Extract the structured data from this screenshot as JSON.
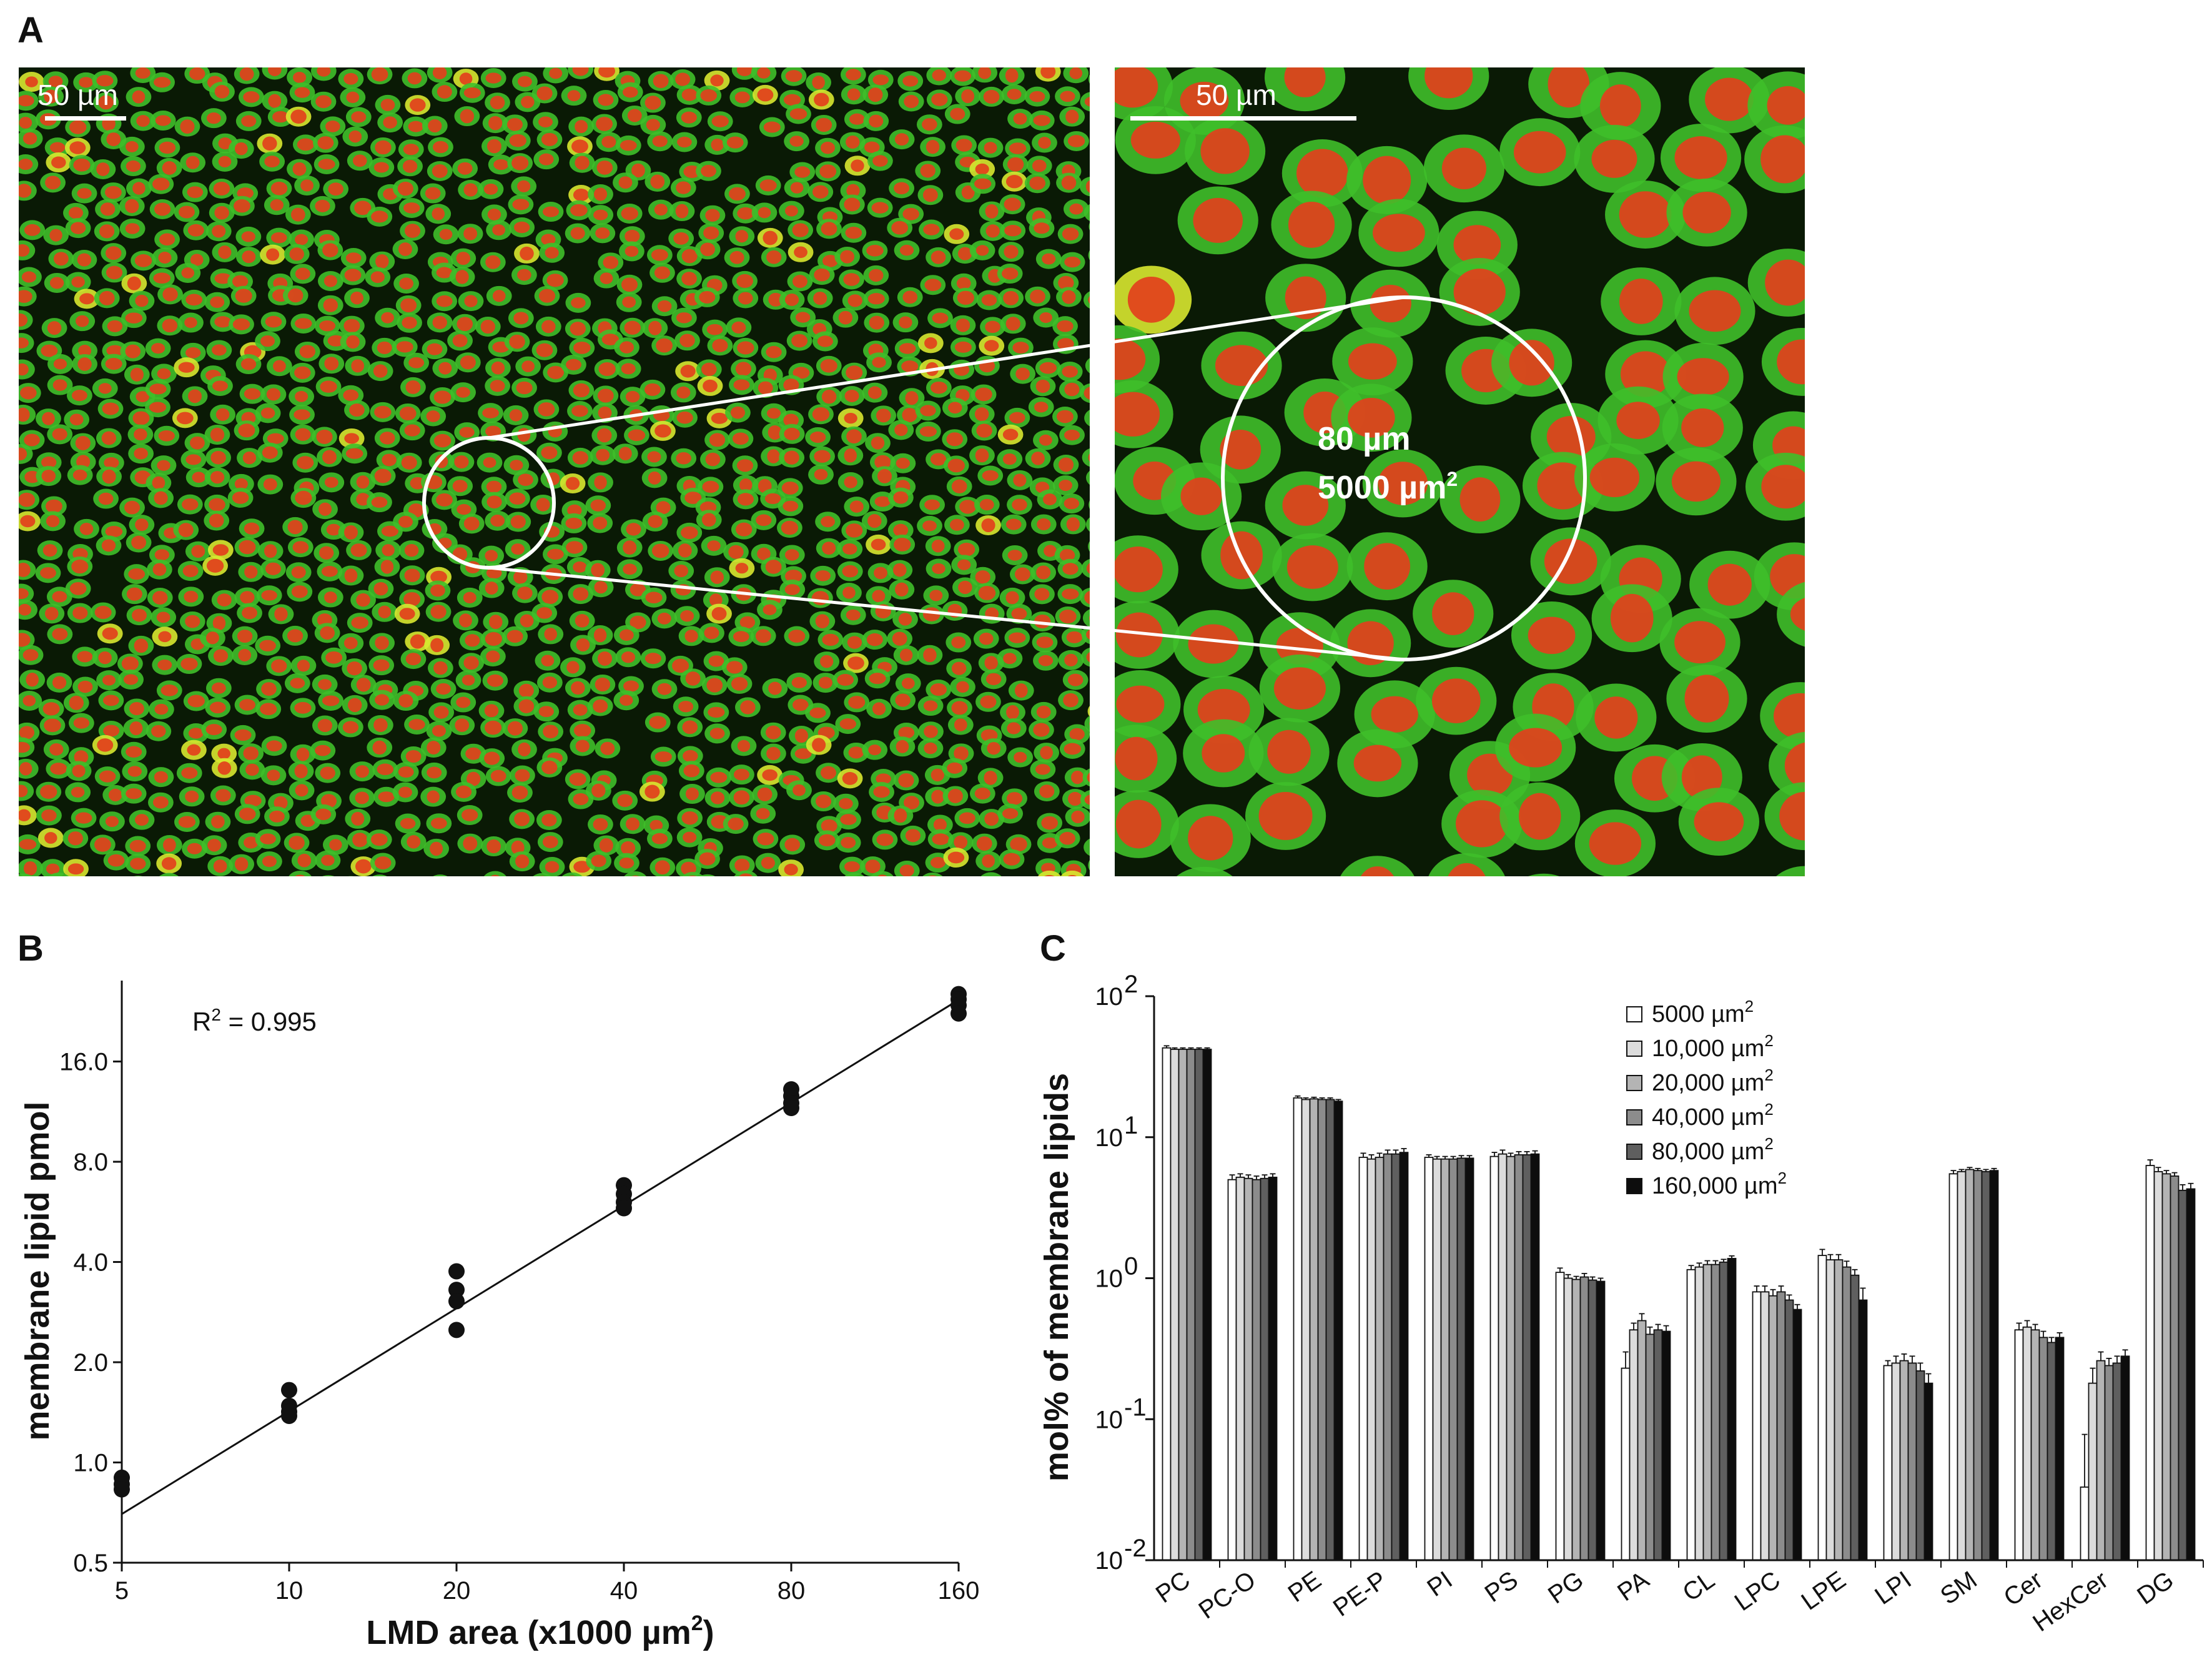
{
  "panels": {
    "a": {
      "letter": "A",
      "left_scalebar_label": "50 µm",
      "right_scalebar_label": "50 µm",
      "circle_line1": "80 µm",
      "circle_line2_prefix": "5000 µm",
      "circle_line2_sup": "2",
      "colors": {
        "background": "#0a1a05",
        "cytoplasm": "#3fbf2a",
        "nucleus": "#e2401c",
        "bright_cell": "#d8e830"
      }
    },
    "b": {
      "letter": "B"
    },
    "c": {
      "letter": "C"
    }
  },
  "chart_data": [
    {
      "id": "B",
      "type": "scatter",
      "x_scale": "log2",
      "y_scale": "log2",
      "xlabel_prefix": "LMD area (x1000 µm",
      "xlabel_sup": "2",
      "xlabel_suffix": ")",
      "ylabel": "membrane lipid pmol",
      "xticks": [
        5,
        10,
        20,
        40,
        80,
        160
      ],
      "xtick_labels": [
        "5",
        "10",
        "20",
        "40",
        "80",
        "160"
      ],
      "yticks": [
        0.5,
        1.0,
        2.0,
        4.0,
        8.0,
        16.0
      ],
      "ytick_labels": [
        "0.5",
        "1.0",
        "2.0",
        "4.0",
        "8.0",
        "16.0"
      ],
      "xlim": [
        5,
        160
      ],
      "ylim": [
        0.5,
        28
      ],
      "r2_prefix": "R",
      "r2_sup": "2",
      "r2_suffix": " = 0.995",
      "points": [
        {
          "x": 5,
          "y": 0.9
        },
        {
          "x": 5,
          "y": 0.86
        },
        {
          "x": 5,
          "y": 0.83
        },
        {
          "x": 10,
          "y": 1.65
        },
        {
          "x": 10,
          "y": 1.48
        },
        {
          "x": 10,
          "y": 1.42
        },
        {
          "x": 10,
          "y": 1.38
        },
        {
          "x": 20,
          "y": 3.75
        },
        {
          "x": 20,
          "y": 3.3
        },
        {
          "x": 20,
          "y": 3.05
        },
        {
          "x": 20,
          "y": 2.5
        },
        {
          "x": 40,
          "y": 6.8
        },
        {
          "x": 40,
          "y": 6.4
        },
        {
          "x": 40,
          "y": 6.05
        },
        {
          "x": 40,
          "y": 5.8
        },
        {
          "x": 80,
          "y": 13.2
        },
        {
          "x": 80,
          "y": 12.6
        },
        {
          "x": 80,
          "y": 12.0
        },
        {
          "x": 80,
          "y": 11.6
        },
        {
          "x": 160,
          "y": 25.5
        },
        {
          "x": 160,
          "y": 24.6
        },
        {
          "x": 160,
          "y": 23.6
        },
        {
          "x": 160,
          "y": 22.3
        }
      ],
      "fit_line": {
        "x1": 5,
        "y1": 0.7,
        "x2": 160,
        "y2": 24.5
      }
    },
    {
      "id": "C",
      "type": "bar",
      "y_scale": "log10",
      "ylabel": "mol% of membrane lipids",
      "ylim": [
        0.01,
        100
      ],
      "ytick_bases": [
        "10",
        "10",
        "10",
        "10",
        "10"
      ],
      "ytick_exps": [
        "-2",
        "-1",
        "0",
        "1",
        "2"
      ],
      "ytick_values": [
        0.01,
        0.1,
        1,
        10,
        100
      ],
      "categories": [
        "PC",
        "PC-O",
        "PE",
        "PE-P",
        "PI",
        "PS",
        "PG",
        "PA",
        "CL",
        "LPC",
        "LPE",
        "LPI",
        "SM",
        "Cer",
        "HexCer",
        "DG"
      ],
      "series": [
        {
          "name_prefix": "5000 µm",
          "name_sup": "2",
          "color": "#ffffff",
          "values": [
            43,
            5.0,
            19,
            7.2,
            7.2,
            7.3,
            1.1,
            0.23,
            1.15,
            0.8,
            1.45,
            0.24,
            5.5,
            0.43,
            0.033,
            6.3
          ],
          "errors": [
            1.5,
            0.4,
            0.6,
            0.5,
            0.3,
            0.5,
            0.08,
            0.07,
            0.08,
            0.08,
            0.15,
            0.02,
            0.3,
            0.05,
            0.045,
            0.6
          ]
        },
        {
          "name_prefix": "10,000 µm",
          "name_sup": "2",
          "color": "#dcdcdc",
          "values": [
            42,
            5.2,
            18.5,
            7.0,
            7.0,
            7.6,
            1.0,
            0.43,
            1.2,
            0.8,
            1.35,
            0.25,
            5.7,
            0.45,
            0.18,
            5.7
          ],
          "errors": [
            1.0,
            0.3,
            0.5,
            0.5,
            0.3,
            0.5,
            0.06,
            0.05,
            0.08,
            0.08,
            0.12,
            0.03,
            0.2,
            0.05,
            0.05,
            0.4
          ]
        },
        {
          "name_prefix": "20,000 µm",
          "name_sup": "2",
          "color": "#b4b4b4",
          "values": [
            42,
            5.1,
            18.7,
            7.2,
            7.0,
            7.3,
            0.98,
            0.5,
            1.25,
            0.75,
            1.35,
            0.26,
            5.9,
            0.43,
            0.26,
            5.5
          ],
          "errors": [
            1.0,
            0.3,
            0.5,
            0.5,
            0.3,
            0.4,
            0.05,
            0.06,
            0.08,
            0.08,
            0.12,
            0.03,
            0.2,
            0.04,
            0.04,
            0.3
          ]
        },
        {
          "name_prefix": "40,000 µm",
          "name_sup": "2",
          "color": "#8c8c8c",
          "values": [
            42,
            5.0,
            18.5,
            7.6,
            7.0,
            7.5,
            1.02,
            0.4,
            1.25,
            0.8,
            1.2,
            0.25,
            5.8,
            0.38,
            0.24,
            5.3
          ],
          "errors": [
            1.0,
            0.3,
            0.5,
            0.5,
            0.3,
            0.4,
            0.06,
            0.05,
            0.08,
            0.08,
            0.12,
            0.03,
            0.2,
            0.04,
            0.03,
            0.3
          ]
        },
        {
          "name_prefix": "80,000 µm",
          "name_sup": "2",
          "color": "#5f5f5f",
          "values": [
            42,
            5.1,
            18.5,
            7.6,
            7.1,
            7.5,
            0.97,
            0.43,
            1.3,
            0.7,
            1.05,
            0.22,
            5.7,
            0.35,
            0.25,
            4.2
          ],
          "errors": [
            1.0,
            0.3,
            0.5,
            0.5,
            0.3,
            0.4,
            0.05,
            0.04,
            0.06,
            0.06,
            0.1,
            0.03,
            0.2,
            0.03,
            0.03,
            0.4
          ]
        },
        {
          "name_prefix": "160,000 µm",
          "name_sup": "2",
          "color": "#0d0d0d",
          "values": [
            42,
            5.2,
            18.0,
            7.8,
            7.1,
            7.6,
            0.95,
            0.42,
            1.38,
            0.6,
            0.7,
            0.18,
            5.8,
            0.38,
            0.28,
            4.3
          ],
          "errors": [
            1.0,
            0.3,
            0.5,
            0.5,
            0.3,
            0.4,
            0.05,
            0.04,
            0.06,
            0.05,
            0.15,
            0.03,
            0.2,
            0.03,
            0.03,
            0.4
          ]
        }
      ]
    }
  ]
}
